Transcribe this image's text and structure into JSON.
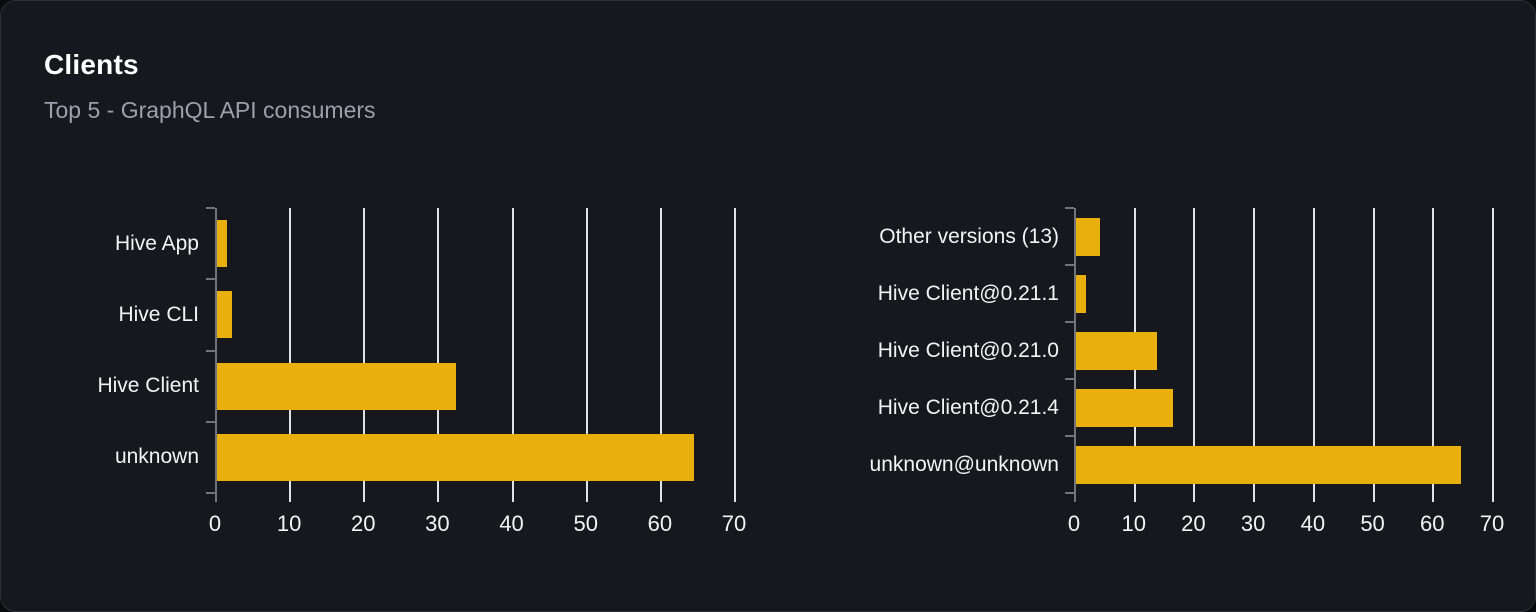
{
  "card": {
    "title": "Clients",
    "subtitle": "Top 5 - GraphQL API consumers"
  },
  "colors": {
    "page_bg": "#0a0b0d",
    "card_bg": "#17181d",
    "card_border": "#2c2f36",
    "title": "#ffffff",
    "subtitle": "#9aa1ac",
    "label": "#f2f3f5",
    "bar": "#e9b00d",
    "gridline": "#dde2ec",
    "axis": "#6f747d"
  },
  "chart_data": [
    {
      "type": "bar",
      "orientation": "horizontal",
      "name": "clients-by-name",
      "categories": [
        "Hive App",
        "Hive CLI",
        "Hive Client",
        "unknown"
      ],
      "values": [
        1.4,
        2,
        32.2,
        64.4
      ],
      "xticks": [
        0,
        10,
        20,
        30,
        40,
        50,
        60,
        70
      ],
      "xlim": [
        0,
        70
      ],
      "grid": true,
      "legend": "none"
    },
    {
      "type": "bar",
      "orientation": "horizontal",
      "name": "clients-by-version",
      "categories": [
        "Other versions (13)",
        "Hive Client@0.21.1",
        "Hive Client@0.21.0",
        "Hive Client@0.21.4",
        "unknown@unknown"
      ],
      "values": [
        4,
        1.7,
        13.6,
        16.2,
        64.5
      ],
      "xticks": [
        0,
        10,
        20,
        30,
        40,
        50,
        60,
        70
      ],
      "xlim": [
        0,
        70
      ],
      "grid": true,
      "legend": "none"
    }
  ]
}
